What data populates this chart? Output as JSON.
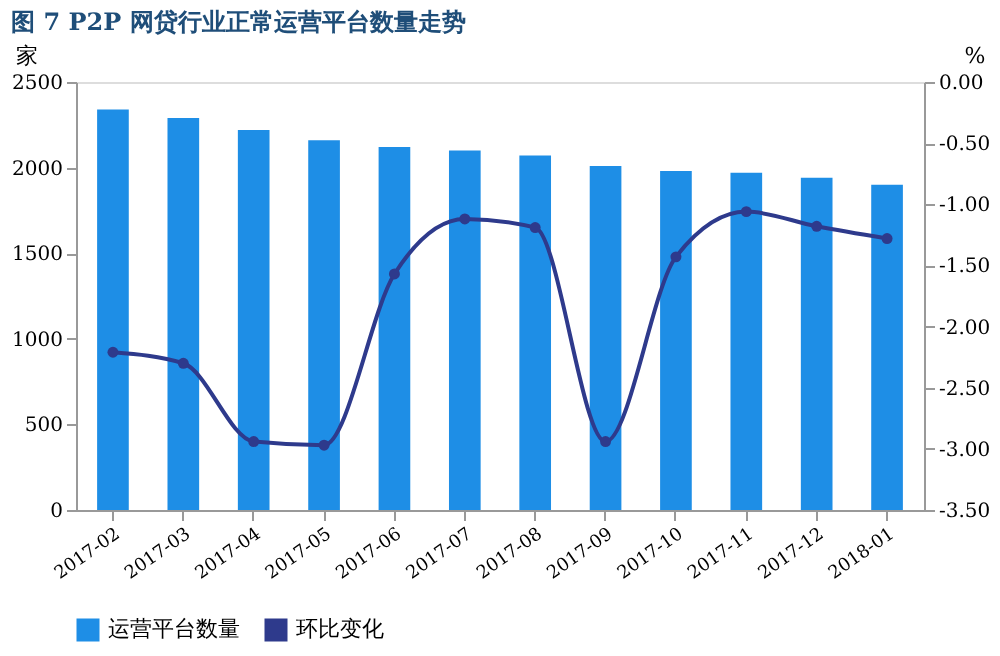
{
  "chart_data": {
    "type": "bar",
    "title": "图 7   P2P 网贷行业正常运营平台数量走势",
    "ylabel": "家",
    "y2label": "%",
    "categories": [
      "2017-02",
      "2017-03",
      "2017-04",
      "2017-05",
      "2017-06",
      "2017-07",
      "2017-08",
      "2017-09",
      "2017-10",
      "2017-11",
      "2017-12",
      "2018-01"
    ],
    "series": [
      {
        "name": "运营平台数量",
        "color": "#1e8ee6",
        "values": [
          2340,
          2290,
          2220,
          2160,
          2120,
          2100,
          2070,
          2010,
          1980,
          1970,
          1940,
          1900
        ]
      },
      {
        "name": "环比变化",
        "type": "line",
        "axis": "y2",
        "color": "#2e3a8c",
        "values": [
          -2.21,
          -2.3,
          -2.94,
          -2.97,
          -1.57,
          -1.12,
          -1.19,
          -2.94,
          -1.43,
          -1.06,
          -1.18,
          -1.28
        ]
      }
    ],
    "ylim": [
      0,
      2500
    ],
    "yticks": [
      0,
      500,
      1000,
      1500,
      2000,
      2500
    ],
    "y2lim": [
      -3.5,
      0
    ],
    "y2ticks": [
      {
        "value": 0,
        "label": "0.00"
      },
      {
        "value": -0.5,
        "label": "-0.50"
      },
      {
        "value": -1,
        "label": "-1.00"
      },
      {
        "value": -1.5,
        "label": "-1.50"
      },
      {
        "value": -2,
        "label": "-2.00"
      },
      {
        "value": -2.5,
        "label": "-2.50"
      },
      {
        "value": -3,
        "label": "-3.00"
      },
      {
        "value": -3.5,
        "label": "-3.50"
      }
    ],
    "legend": "bottom",
    "marker": "circle",
    "grid": false
  }
}
